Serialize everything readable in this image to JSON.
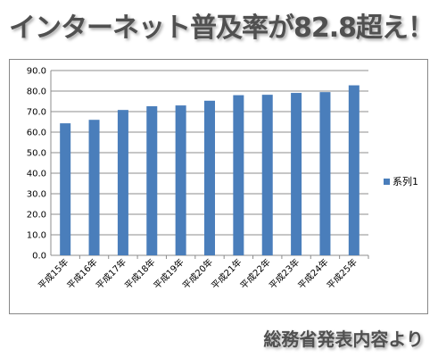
{
  "headline": "インターネット普及率が82.8超え！",
  "source_note": "総務省発表内容より",
  "chart_data": {
    "type": "bar",
    "title": "",
    "xlabel": "",
    "ylabel": "",
    "categories": [
      "平成15年",
      "平成16年",
      "平成17年",
      "平成18年",
      "平成19年",
      "平成20年",
      "平成21年",
      "平成22年",
      "平成23年",
      "平成24年",
      "平成25年"
    ],
    "series": [
      {
        "name": "系列1",
        "color": "#4a7ebb",
        "values": [
          64.3,
          66.0,
          70.8,
          72.6,
          73.0,
          75.3,
          78.0,
          78.2,
          79.1,
          79.5,
          82.8
        ]
      }
    ],
    "ylim": [
      0,
      90
    ],
    "yticks": [
      "0.0",
      "10.0",
      "20.0",
      "30.0",
      "40.0",
      "50.0",
      "60.0",
      "70.0",
      "80.0",
      "90.0"
    ],
    "grid": true,
    "legend": "right"
  }
}
